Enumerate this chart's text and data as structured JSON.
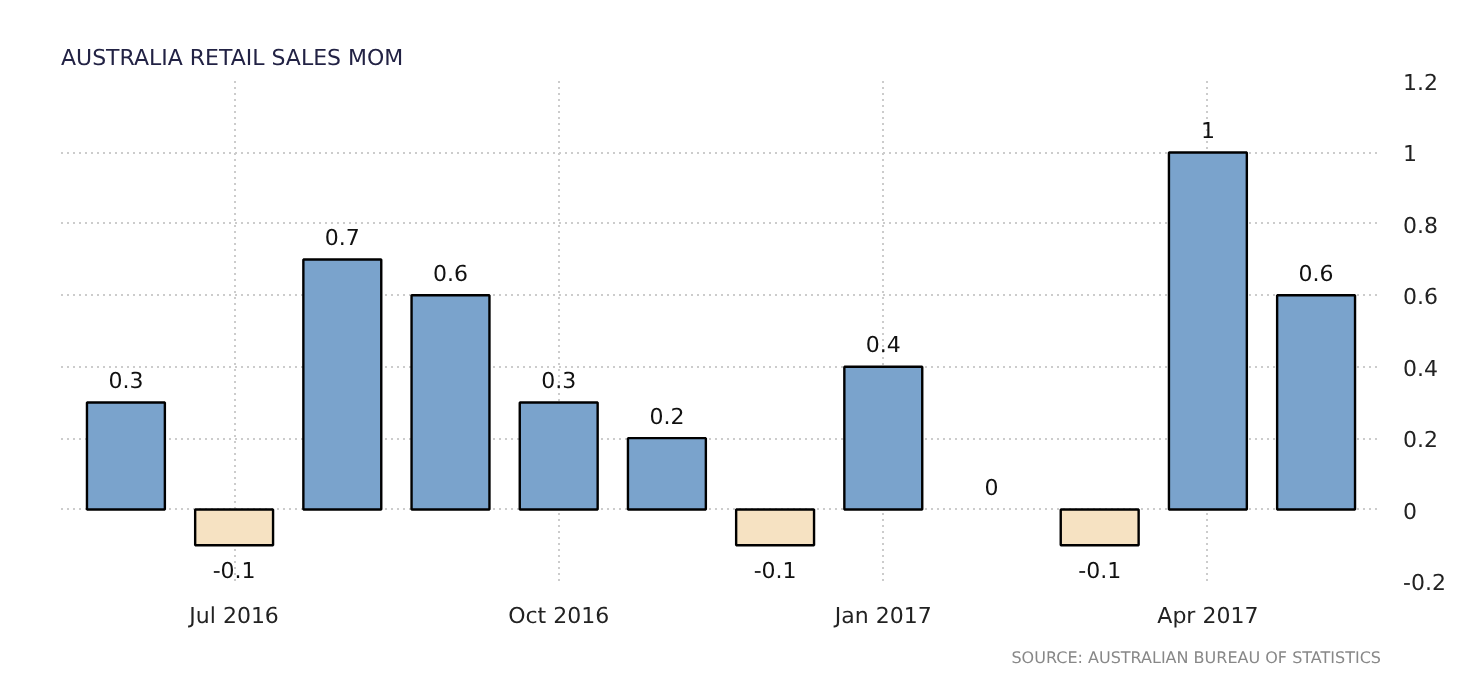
{
  "chart_data": {
    "type": "bar",
    "title": "AUSTRALIA RETAIL SALES MOM",
    "categories": [
      null,
      "Jul 2016",
      null,
      null,
      "Oct 2016",
      null,
      null,
      "Jan 2017",
      null,
      null,
      "Apr 2017",
      null
    ],
    "values": [
      0.3,
      -0.1,
      0.7,
      0.6,
      0.3,
      0.2,
      -0.1,
      0.4,
      0,
      -0.1,
      1,
      0.6
    ],
    "colors": [
      "#7aa3cc",
      "#f6e2c2",
      "#7aa3cc",
      "#7aa3cc",
      "#7aa3cc",
      "#7aa3cc",
      "#f6e2c2",
      "#7aa3cc",
      "#7aa3cc",
      "#f6e2c2",
      "#7aa3cc",
      "#7aa3cc"
    ],
    "ylim": [
      -0.2,
      1.2
    ],
    "yticks": [
      -0.2,
      0,
      0.2,
      0.4,
      0.6,
      0.8,
      1,
      1.2
    ],
    "data_labels": true,
    "grid": true,
    "annotations": [
      "SOURCE: AUSTRALIAN BUREAU OF STATISTICS"
    ]
  }
}
